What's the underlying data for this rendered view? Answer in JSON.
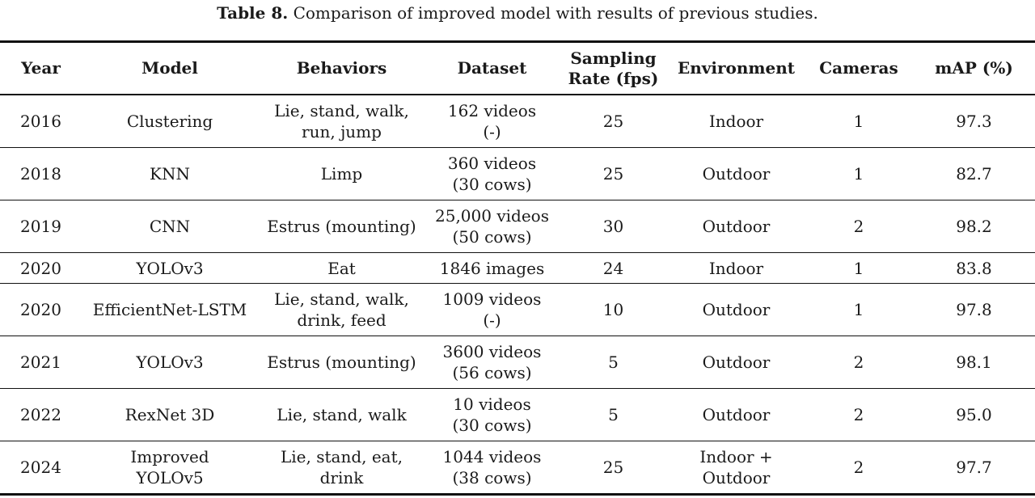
{
  "caption": {
    "label": "Table 8.",
    "text": "Comparison of improved model with results of previous studies."
  },
  "headers": [
    "Year",
    "Model",
    "Behaviors",
    "Dataset",
    "Sampling\nRate (fps)",
    "Environment",
    "Cameras",
    "mAP (%)"
  ],
  "rows": [
    {
      "year": "2016",
      "model": "Clustering",
      "behaviors": "Lie, stand, walk,\nrun, jump",
      "dataset": "162 videos\n(-)",
      "rate": "25",
      "environment": "Indoor",
      "cameras": "1",
      "map": "97.3"
    },
    {
      "year": "2018",
      "model": "KNN",
      "behaviors": "Limp",
      "dataset": "360 videos\n(30 cows)",
      "rate": "25",
      "environment": "Outdoor",
      "cameras": "1",
      "map": "82.7"
    },
    {
      "year": "2019",
      "model": "CNN",
      "behaviors": "Estrus (mounting)",
      "dataset": "25,000 videos\n(50 cows)",
      "rate": "30",
      "environment": "Outdoor",
      "cameras": "2",
      "map": "98.2"
    },
    {
      "year": "2020",
      "model": "YOLOv3",
      "behaviors": "Eat",
      "dataset": "1846 images",
      "rate": "24",
      "environment": "Indoor",
      "cameras": "1",
      "map": "83.8"
    },
    {
      "year": "2020",
      "model": "EfficientNet-LSTM",
      "behaviors": "Lie, stand, walk,\ndrink, feed",
      "dataset": "1009 videos\n(-)",
      "rate": "10",
      "environment": "Outdoor",
      "cameras": "1",
      "map": "97.8"
    },
    {
      "year": "2021",
      "model": "YOLOv3",
      "behaviors": "Estrus (mounting)",
      "dataset": "3600 videos\n(56 cows)",
      "rate": "5",
      "environment": "Outdoor",
      "cameras": "2",
      "map": "98.1"
    },
    {
      "year": "2022",
      "model": "RexNet 3D",
      "behaviors": "Lie, stand, walk",
      "dataset": "10 videos\n(30 cows)",
      "rate": "5",
      "environment": "Outdoor",
      "cameras": "2",
      "map": "95.0"
    },
    {
      "year": "2024",
      "model": "Improved\nYOLOv5",
      "behaviors": "Lie, stand, eat,\ndrink",
      "dataset": "1044 videos\n(38 cows)",
      "rate": "25",
      "environment": "Indoor +\nOutdoor",
      "cameras": "2",
      "map": "97.7"
    }
  ]
}
